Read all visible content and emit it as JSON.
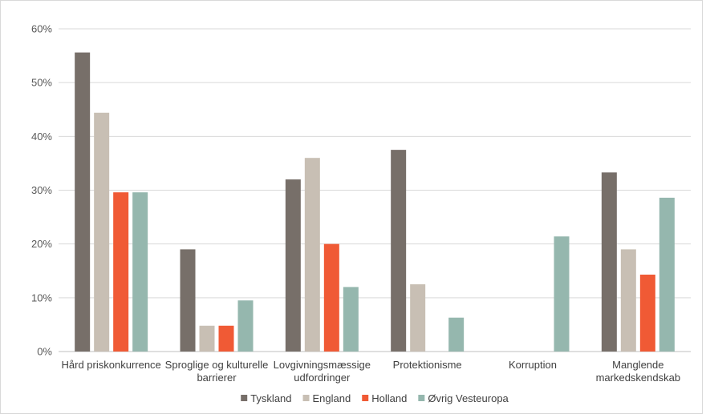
{
  "chart_data": {
    "type": "bar",
    "title": "",
    "xlabel": "",
    "ylabel": "",
    "ylim": [
      0,
      60
    ],
    "yticks": [
      0,
      10,
      20,
      30,
      40,
      50,
      60
    ],
    "ytick_labels": [
      "0%",
      "10%",
      "20%",
      "30%",
      "40%",
      "50%",
      "60%"
    ],
    "grid": true,
    "legend_position": "bottom",
    "categories": [
      [
        "Hård priskonkurrence"
      ],
      [
        "Sproglige og kulturelle",
        "barrierer"
      ],
      [
        "Lovgivningsmæssige",
        "udfordringer"
      ],
      [
        "Protektionisme"
      ],
      [
        "Korruption"
      ],
      [
        "Manglende",
        "markedskendskab"
      ]
    ],
    "series": [
      {
        "name": "Tyskland",
        "color": "#776f69",
        "values": [
          55.6,
          19.0,
          32.0,
          37.5,
          0,
          33.3
        ]
      },
      {
        "name": "England",
        "color": "#c8bfb4",
        "values": [
          44.4,
          4.8,
          36.0,
          12.5,
          0,
          19.0
        ]
      },
      {
        "name": "Holland",
        "color": "#f05a35",
        "values": [
          29.6,
          4.8,
          20.0,
          0,
          0,
          14.3
        ]
      },
      {
        "name": "Øvrig Vesteuropa",
        "color": "#95b7ae",
        "values": [
          29.6,
          9.5,
          12.0,
          6.3,
          21.4,
          28.6
        ]
      }
    ]
  }
}
